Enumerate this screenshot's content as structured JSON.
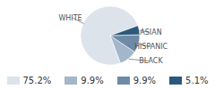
{
  "chart_data": {
    "type": "pie",
    "categories": [
      "WHITE",
      "BLACK",
      "HISPANIC",
      "ASIAN"
    ],
    "values": [
      75.2,
      9.9,
      9.9,
      5.1
    ],
    "value_labels": [
      "75.2%",
      "9.9%",
      "9.9%",
      "5.1%"
    ],
    "colors": [
      "#dce3ea",
      "#a3b6ca",
      "#6e8aa6",
      "#2c587c"
    ],
    "legend": "bottom"
  }
}
